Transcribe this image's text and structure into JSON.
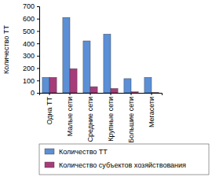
{
  "chart_data": {
    "type": "bar",
    "y_label": "Количество ТТ",
    "categories": [
      "Одна ТТ",
      "Малые сети",
      "Средние сети",
      "Крупные сети",
      "Большие сети",
      "Мегасети"
    ],
    "series": [
      {
        "name": "Количество ТТ",
        "color": "#5b8fd6",
        "values": [
          125,
          610,
          420,
          475,
          115,
          125
        ]
      },
      {
        "name": "Количество субъектов хозяйствования",
        "color": "#a63d7a",
        "values": [
          125,
          195,
          50,
          35,
          8,
          2
        ]
      }
    ],
    "ylim": [
      0,
      700
    ],
    "yticks": [
      0,
      100,
      200,
      300,
      400,
      500,
      600,
      700
    ],
    "grid": false,
    "legend": "bottom"
  }
}
